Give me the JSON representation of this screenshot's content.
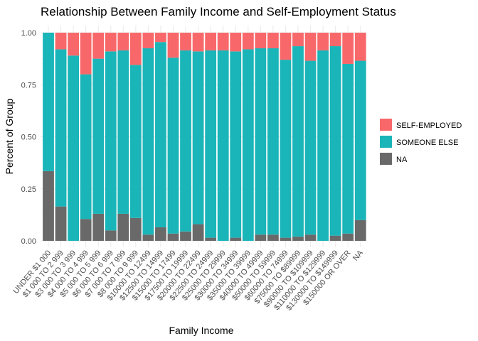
{
  "chart_data": {
    "type": "bar",
    "stacked": true,
    "title": "Relationship Between Family Income and Self-Employment Status",
    "xlabel": "Family Income",
    "ylabel": "Percent of Group",
    "ylim": [
      0,
      1
    ],
    "yticks": [
      "0.00",
      "0.25",
      "0.50",
      "0.75",
      "1.00"
    ],
    "grid": true,
    "legend_position": "right",
    "categories": [
      "UNDER $1 000",
      "$1 000 TO 2 999",
      "$3 000 TO 3 999",
      "$4 000 TO 4 999",
      "$5 000 TO 5 999",
      "$6 000 TO 6 999",
      "$7 000 TO 7 999",
      "$8 000 TO 9 999",
      "$10000 TO 12499",
      "$12500 TO 14999",
      "$15000 TO 17499",
      "$17500 TO 19999",
      "$20000 TO 22499",
      "$22500 TO 24999",
      "$25000 TO 29999",
      "$30000 TO 34999",
      "$35000 TO 39999",
      "$40000 TO 49999",
      "$50000 TO 59999",
      "$60000 TO 74999",
      "$75000 TO $89999",
      "$90000 TO $109999",
      "$110000 TO $129999",
      "$130000 TO $149999",
      "$150000 OR OVER",
      "NA"
    ],
    "series": [
      {
        "name": "NA",
        "color": "#696969",
        "values": [
          0.335,
          0.165,
          0.0,
          0.105,
          0.13,
          0.05,
          0.13,
          0.11,
          0.03,
          0.065,
          0.035,
          0.045,
          0.08,
          0.015,
          0.0,
          0.015,
          0.0,
          0.03,
          0.03,
          0.015,
          0.02,
          0.03,
          0.0,
          0.025,
          0.035,
          0.1
        ]
      },
      {
        "name": "SOMEONE ELSE",
        "color": "#1ab5b8",
        "values": [
          0.665,
          0.755,
          0.89,
          0.695,
          0.745,
          0.86,
          0.785,
          0.735,
          0.895,
          0.89,
          0.845,
          0.87,
          0.83,
          0.9,
          0.915,
          0.895,
          0.92,
          0.895,
          0.895,
          0.855,
          0.915,
          0.835,
          0.915,
          0.91,
          0.815,
          0.765
        ]
      },
      {
        "name": "SELF-EMPLOYED",
        "color": "#f8686a",
        "values": [
          0.0,
          0.08,
          0.11,
          0.2,
          0.125,
          0.09,
          0.085,
          0.155,
          0.075,
          0.045,
          0.12,
          0.085,
          0.09,
          0.085,
          0.085,
          0.09,
          0.08,
          0.075,
          0.075,
          0.13,
          0.065,
          0.135,
          0.085,
          0.065,
          0.15,
          0.135
        ]
      }
    ],
    "legend": [
      {
        "label": "SELF-EMPLOYED",
        "color": "#f8686a"
      },
      {
        "label": "SOMEONE ELSE",
        "color": "#1ab5b8"
      },
      {
        "label": "NA",
        "color": "#696969"
      }
    ]
  }
}
